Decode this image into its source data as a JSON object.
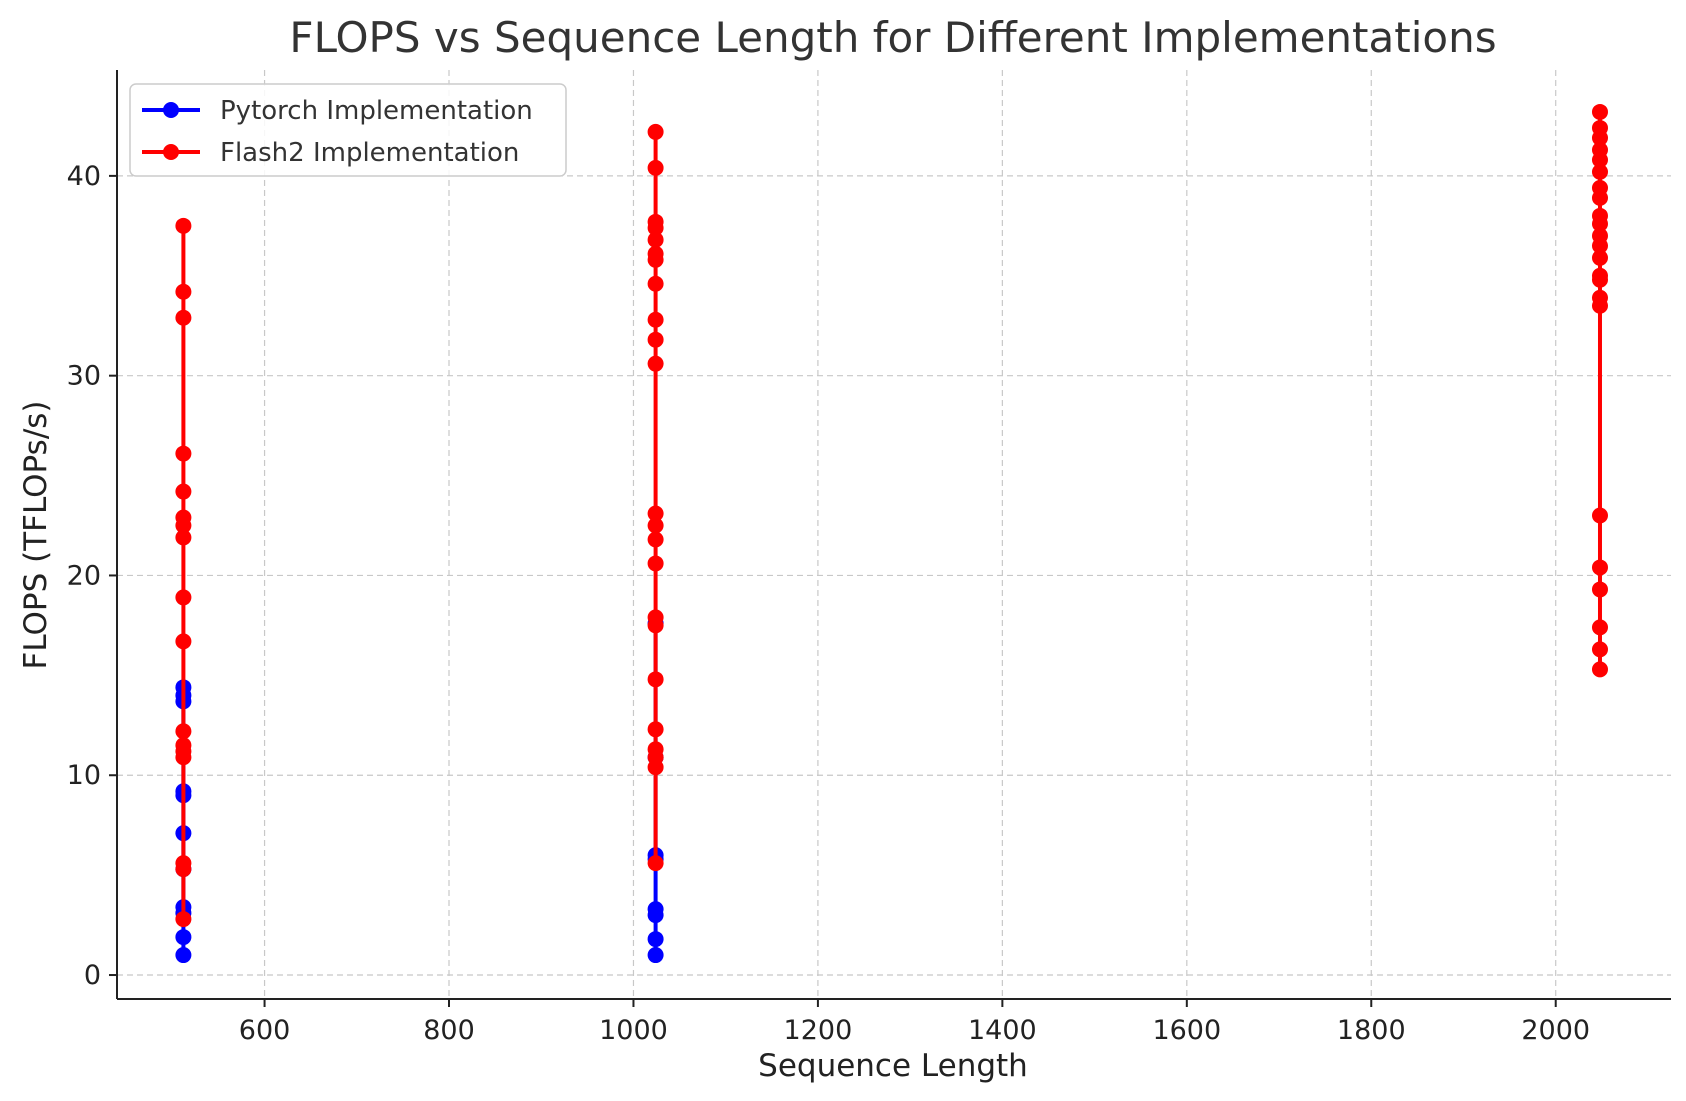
{
  "chart_data": {
    "type": "line",
    "title": "FLOPS vs Sequence Length for Different Implementations",
    "xlabel": "Sequence Length",
    "ylabel": "FLOPS (TFLOPs/s)",
    "xlim": [
      440,
      2125
    ],
    "ylim": [
      -1.2,
      45.3
    ],
    "xticks": [
      600,
      800,
      1000,
      1200,
      1400,
      1600,
      1800,
      2000
    ],
    "yticks": [
      0,
      10,
      20,
      30,
      40
    ],
    "grid": true,
    "legend_position": "top-left",
    "series": [
      {
        "name": "Pytorch Implementation",
        "color": "#0000ff",
        "points": [
          [
            512,
            14.4
          ],
          [
            512,
            14.0
          ],
          [
            512,
            13.7
          ],
          [
            512,
            9.2
          ],
          [
            512,
            9.0
          ],
          [
            512,
            7.1
          ],
          [
            512,
            5.3
          ],
          [
            512,
            3.4
          ],
          [
            512,
            3.1
          ],
          [
            512,
            1.9
          ],
          [
            512,
            1.0
          ],
          [
            1024,
            17.6
          ],
          [
            1024,
            10.9
          ],
          [
            1024,
            6.0
          ],
          [
            1024,
            5.8
          ],
          [
            1024,
            3.3
          ],
          [
            1024,
            3.0
          ],
          [
            1024,
            1.8
          ],
          [
            1024,
            1.0
          ]
        ]
      },
      {
        "name": "Flash2 Implementation",
        "color": "#ff0000",
        "points": [
          [
            512,
            37.5
          ],
          [
            512,
            34.2
          ],
          [
            512,
            32.9
          ],
          [
            512,
            26.1
          ],
          [
            512,
            24.2
          ],
          [
            512,
            22.9
          ],
          [
            512,
            22.5
          ],
          [
            512,
            21.9
          ],
          [
            512,
            18.9
          ],
          [
            512,
            16.7
          ],
          [
            512,
            12.2
          ],
          [
            512,
            11.5
          ],
          [
            512,
            11.2
          ],
          [
            512,
            10.9
          ],
          [
            512,
            5.6
          ],
          [
            512,
            5.3
          ],
          [
            512,
            2.8
          ],
          [
            1024,
            42.2
          ],
          [
            1024,
            40.4
          ],
          [
            1024,
            37.7
          ],
          [
            1024,
            37.4
          ],
          [
            1024,
            36.8
          ],
          [
            1024,
            36.1
          ],
          [
            1024,
            35.8
          ],
          [
            1024,
            34.6
          ],
          [
            1024,
            32.8
          ],
          [
            1024,
            31.8
          ],
          [
            1024,
            30.6
          ],
          [
            1024,
            23.1
          ],
          [
            1024,
            22.5
          ],
          [
            1024,
            21.8
          ],
          [
            1024,
            20.6
          ],
          [
            1024,
            17.9
          ],
          [
            1024,
            17.5
          ],
          [
            1024,
            14.8
          ],
          [
            1024,
            12.3
          ],
          [
            1024,
            11.3
          ],
          [
            1024,
            10.9
          ],
          [
            1024,
            10.4
          ],
          [
            1024,
            5.6
          ],
          [
            2048,
            43.2
          ],
          [
            2048,
            42.4
          ],
          [
            2048,
            41.9
          ],
          [
            2048,
            41.3
          ],
          [
            2048,
            40.8
          ],
          [
            2048,
            40.2
          ],
          [
            2048,
            39.4
          ],
          [
            2048,
            38.9
          ],
          [
            2048,
            38.0
          ],
          [
            2048,
            37.6
          ],
          [
            2048,
            37.0
          ],
          [
            2048,
            36.5
          ],
          [
            2048,
            35.9
          ],
          [
            2048,
            35.0
          ],
          [
            2048,
            34.8
          ],
          [
            2048,
            33.9
          ],
          [
            2048,
            33.5
          ],
          [
            2048,
            23.0
          ],
          [
            2048,
            20.4
          ],
          [
            2048,
            19.3
          ],
          [
            2048,
            17.4
          ],
          [
            2048,
            16.3
          ],
          [
            2048,
            15.3
          ]
        ]
      }
    ]
  }
}
